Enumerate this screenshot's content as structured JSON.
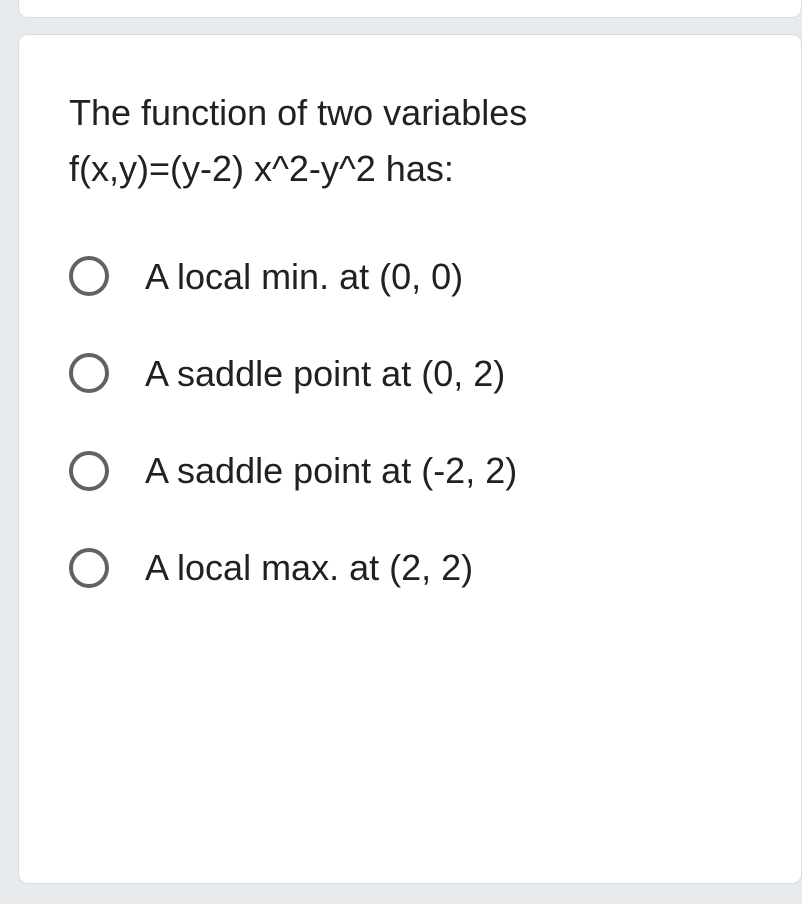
{
  "question": {
    "line1": "The function of two variables",
    "line2": "f(x,y)=(y-2) x^2-y^2 has:"
  },
  "options": [
    {
      "label": "A local min. at (0, 0)"
    },
    {
      "label": "A saddle point at (0, 2)"
    },
    {
      "label": "A saddle point at (-2, 2)"
    },
    {
      "label": "A local max. at (2, 2)"
    }
  ],
  "colors": {
    "background": "#e8ebee",
    "card_bg": "#ffffff",
    "card_border": "#dadce0",
    "text": "#202124",
    "radio_border": "#5f6368"
  }
}
